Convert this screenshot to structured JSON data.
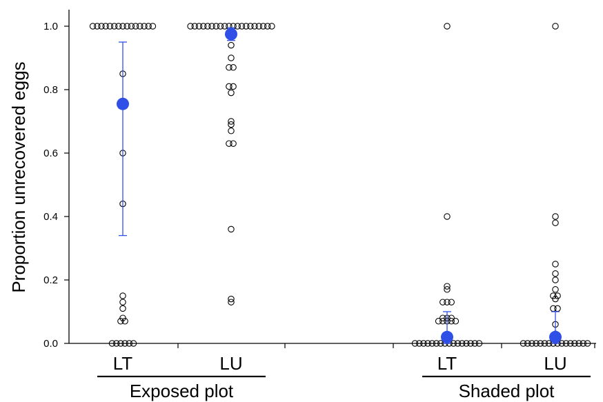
{
  "chart_data": {
    "type": "scatter",
    "ylabel": "Proportion unrecovered eggs",
    "ylim": [
      0,
      1.0
    ],
    "yticks": [
      "0.0",
      "0.2",
      "0.4",
      "0.6",
      "0.8",
      "1.0"
    ],
    "grid": false,
    "colors": {
      "mean": "#2f4fe6",
      "points": "#000000",
      "error_bar": "#2f4fe6"
    },
    "groups": [
      {
        "name": "Exposed plot",
        "categories": [
          {
            "label": "LT",
            "points": [
              1,
              1,
              1,
              1,
              1,
              1,
              1,
              1,
              1,
              1,
              1,
              1,
              1,
              1,
              1,
              0.85,
              0.6,
              0.44,
              0.15,
              0.13,
              0.11,
              0.08,
              0.07,
              0.07,
              0,
              0,
              0,
              0,
              0,
              0
            ],
            "mean": 0.755,
            "error_low": 0.34,
            "error_high": 0.95
          },
          {
            "label": "LU",
            "points": [
              1,
              1,
              1,
              1,
              1,
              1,
              1,
              1,
              1,
              1,
              1,
              1,
              1,
              1,
              1,
              1,
              1,
              1,
              1,
              1,
              0.94,
              0.9,
              0.87,
              0.87,
              0.81,
              0.81,
              0.79,
              0.7,
              0.69,
              0.67,
              0.63,
              0.63,
              0.36,
              0.14,
              0.13
            ],
            "mean": 0.975,
            "error_low": 0.955,
            "error_high": 0.995
          }
        ]
      },
      {
        "name": "Shaded plot",
        "categories": [
          {
            "label": "LT",
            "points": [
              1,
              0.4,
              0.18,
              0.17,
              0.13,
              0.13,
              0.13,
              0.08,
              0.08,
              0.08,
              0.07,
              0.07,
              0.07,
              0.07,
              0.07,
              0,
              0,
              0,
              0,
              0,
              0,
              0,
              0,
              0,
              0,
              0,
              0,
              0,
              0,
              0,
              0
            ],
            "mean": 0.02,
            "error_low": 0.0,
            "error_high": 0.1
          },
          {
            "label": "LU",
            "points": [
              1,
              0.4,
              0.38,
              0.25,
              0.22,
              0.2,
              0.17,
              0.15,
              0.15,
              0.14,
              0.11,
              0.11,
              0.06,
              0.03,
              0,
              0,
              0,
              0,
              0,
              0,
              0,
              0,
              0,
              0,
              0,
              0,
              0,
              0,
              0,
              0
            ],
            "mean": 0.02,
            "error_low": 0.0,
            "error_high": 0.1
          }
        ]
      }
    ]
  }
}
